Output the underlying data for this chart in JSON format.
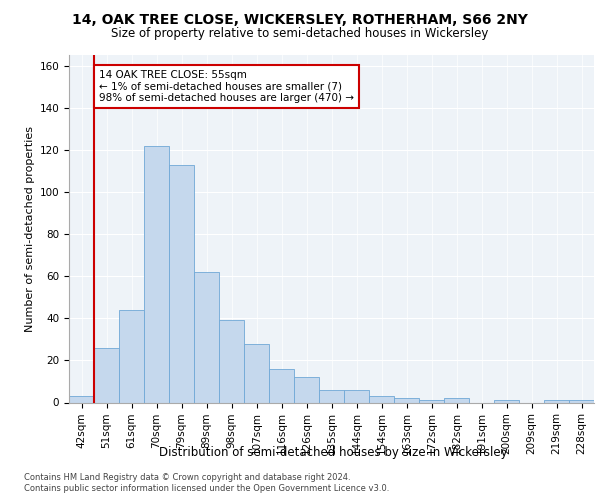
{
  "title1": "14, OAK TREE CLOSE, WICKERSLEY, ROTHERHAM, S66 2NY",
  "title2": "Size of property relative to semi-detached houses in Wickersley",
  "xlabel": "Distribution of semi-detached houses by size in Wickersley",
  "ylabel": "Number of semi-detached properties",
  "footnote1": "Contains HM Land Registry data © Crown copyright and database right 2024.",
  "footnote2": "Contains public sector information licensed under the Open Government Licence v3.0.",
  "annotation_title": "14 OAK TREE CLOSE: 55sqm",
  "annotation_line2": "← 1% of semi-detached houses are smaller (7)",
  "annotation_line3": "98% of semi-detached houses are larger (470) →",
  "bar_labels": [
    "42sqm",
    "51sqm",
    "61sqm",
    "70sqm",
    "79sqm",
    "89sqm",
    "98sqm",
    "107sqm",
    "116sqm",
    "126sqm",
    "135sqm",
    "144sqm",
    "154sqm",
    "163sqm",
    "172sqm",
    "182sqm",
    "191sqm",
    "200sqm",
    "209sqm",
    "219sqm",
    "228sqm"
  ],
  "bar_heights": [
    3,
    26,
    44,
    122,
    113,
    62,
    39,
    28,
    16,
    12,
    6,
    6,
    3,
    2,
    1,
    2,
    0,
    1,
    0,
    1,
    1
  ],
  "bar_color": "#c5d8ed",
  "bar_edge_color": "#6fa8d6",
  "highlight_color": "#cc0000",
  "ylim": [
    0,
    165
  ],
  "yticks": [
    0,
    20,
    40,
    60,
    80,
    100,
    120,
    140,
    160
  ],
  "bg_color": "#eef3f8",
  "grid_color": "#ffffff",
  "title1_fontsize": 10,
  "title2_fontsize": 8.5,
  "xlabel_fontsize": 8.5,
  "ylabel_fontsize": 8,
  "tick_fontsize": 7.5,
  "footnote_fontsize": 6,
  "annotation_fontsize": 7.5
}
